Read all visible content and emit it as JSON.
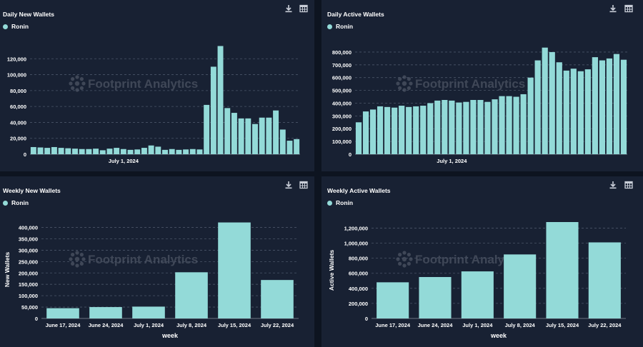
{
  "colors": {
    "bar": "#93dad8",
    "panel": "#182133",
    "page": "#0d1420"
  },
  "watermark": "Footprint Analytics",
  "panels": [
    {
      "title": "Daily New Wallets",
      "legend": [
        "Ronin"
      ],
      "icons": [
        "download-icon",
        "table-icon"
      ]
    },
    {
      "title": "Daily Active Wallets",
      "legend": [
        "Ronin"
      ],
      "icons": [
        "download-icon",
        "table-icon"
      ]
    },
    {
      "title": "Weekly New Wallets",
      "legend": [
        "Ronin"
      ],
      "icons": [
        "download-icon",
        "table-icon"
      ]
    },
    {
      "title": "Weekly Active Wallets",
      "legend": [
        "Ronin"
      ],
      "icons": [
        "download-icon",
        "table-icon"
      ]
    }
  ],
  "chart_data": [
    {
      "type": "bar",
      "title": "Daily New Wallets",
      "series": [
        {
          "name": "Ronin",
          "values": [
            9000,
            8500,
            8000,
            9000,
            8000,
            7500,
            7000,
            6500,
            6500,
            7000,
            5000,
            7000,
            8000,
            6500,
            5500,
            6000,
            8000,
            11000,
            9500,
            5500,
            6500,
            5500,
            6000,
            6500,
            6000,
            62000,
            110000,
            136000,
            58000,
            52000,
            45000,
            45000,
            38000,
            46000,
            46000,
            55000,
            31000,
            17000,
            19000
          ]
        }
      ],
      "xticks": [
        {
          "index": 13,
          "label": "July 1, 2024"
        }
      ],
      "yticks": [
        0,
        20000,
        40000,
        60000,
        80000,
        100000,
        120000
      ],
      "ylim": [
        0,
        140000
      ],
      "xlabel": "",
      "ylabel": "",
      "grid": true
    },
    {
      "type": "bar",
      "title": "Daily Active Wallets",
      "series": [
        {
          "name": "Ronin",
          "values": [
            250000,
            335000,
            350000,
            375000,
            370000,
            365000,
            380000,
            370000,
            375000,
            380000,
            400000,
            420000,
            425000,
            420000,
            405000,
            410000,
            425000,
            425000,
            410000,
            430000,
            455000,
            455000,
            450000,
            470000,
            600000,
            735000,
            835000,
            800000,
            720000,
            655000,
            670000,
            650000,
            665000,
            760000,
            735000,
            750000,
            785000,
            740000
          ]
        }
      ],
      "xticks": [
        {
          "index": 13,
          "label": "July 1, 2024"
        }
      ],
      "yticks": [
        0,
        100000,
        200000,
        300000,
        400000,
        500000,
        600000,
        700000,
        800000
      ],
      "ylim": [
        0,
        850000
      ],
      "xlabel": "",
      "ylabel": "",
      "grid": true
    },
    {
      "type": "bar",
      "title": "Weekly New Wallets",
      "categories": [
        "June 17, 2024",
        "June 24, 2024",
        "July 1, 2024",
        "July 8, 2024",
        "July 15, 2024",
        "July 22, 2024"
      ],
      "series": [
        {
          "name": "Ronin",
          "values": [
            45000,
            50000,
            52000,
            203000,
            422000,
            169000
          ]
        }
      ],
      "yticks": [
        0,
        50000,
        100000,
        150000,
        200000,
        250000,
        300000,
        350000,
        400000
      ],
      "ylim": [
        0,
        430000
      ],
      "xlabel": "week",
      "ylabel": "New Wallets",
      "grid": true
    },
    {
      "type": "bar",
      "title": "Weekly Active Wallets",
      "categories": [
        "June 17, 2024",
        "June 24, 2024",
        "July 1, 2024",
        "July 8, 2024",
        "July 15, 2024",
        "July 22, 2024"
      ],
      "series": [
        {
          "name": "Ronin",
          "values": [
            480000,
            550000,
            625000,
            850000,
            1280000,
            1010000
          ]
        }
      ],
      "yticks": [
        0,
        200000,
        400000,
        600000,
        800000,
        1000000,
        1200000
      ],
      "ylim": [
        0,
        1280000
      ],
      "xlabel": "week",
      "ylabel": "Active Wallets",
      "grid": true
    }
  ]
}
